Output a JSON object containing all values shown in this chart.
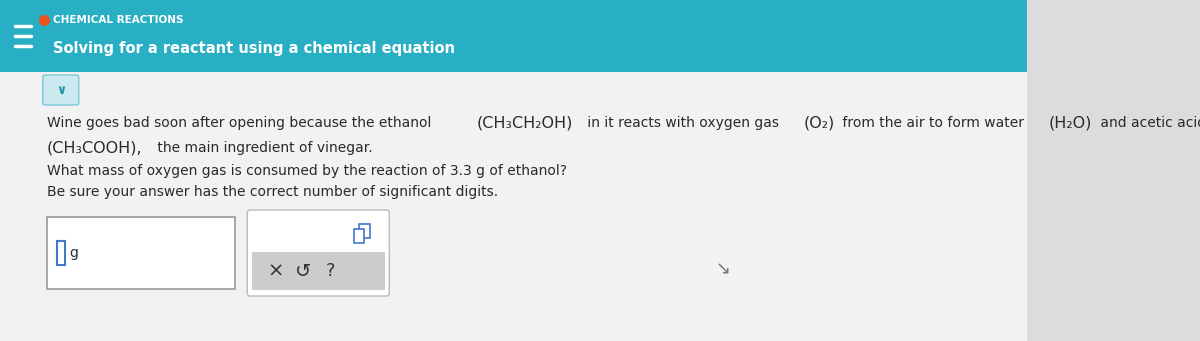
{
  "bg_color": "#dcdcdc",
  "header_color": "#29afc4",
  "header_title_small": "CHEMICAL REACTIONS",
  "header_title_large": "Solving for a reactant using a chemical equation",
  "header_dot_color": "#e8541e",
  "body_bg": "#f2f2f2",
  "line1_pre": "Wine goes bad soon after opening because the ethanol ",
  "line1_f1": "(CH₃CH₂OH)",
  "line1_mid1": " in it reacts with oxygen gas ",
  "line1_f2": "(O₂)",
  "line1_mid2": " from the air to form water ",
  "line1_f3": "(H₂O)",
  "line1_post": " and acetic acid",
  "line2_f": "(CH₃COOH),",
  "line2_post": " the main ingredient of vinegar.",
  "line3": "What mass of oxygen gas is consumed by the reaction of 3.3 g of ethanol?",
  "line4": "Be sure your answer has the correct number of significant digits.",
  "text_color": "#2a2a2a",
  "text_color_light": "#555555",
  "font_size_body": 10.0,
  "font_size_header_small": 7.5,
  "font_size_header_large": 10.5,
  "chevron_bg": "#cce9f0",
  "chevron_border": "#7ec8d8",
  "input_box_color": "#ffffff",
  "input_border": "#999999",
  "toolbar_bg": "#ffffff",
  "toolbar_bottom_bg": "#cccccc",
  "toolbar_border": "#bbbbbb"
}
